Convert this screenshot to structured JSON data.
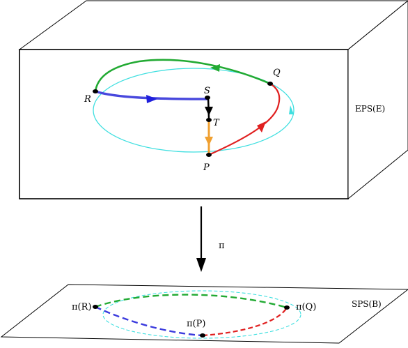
{
  "labels": {
    "R": "R",
    "S": "S",
    "T": "T",
    "P": "P",
    "Q": "Q",
    "eps": "EPS(E)",
    "projection": "π",
    "piR": "π(R)",
    "piP": "π(P)",
    "piQ": "π(Q)",
    "sps": "SPS(B)"
  },
  "colors": {
    "green": "#22aa33",
    "blue": "#3b3bdd",
    "cyan": "#3fdfe0",
    "red": "#e02020",
    "orange": "#f0a030",
    "black": "#000000"
  }
}
